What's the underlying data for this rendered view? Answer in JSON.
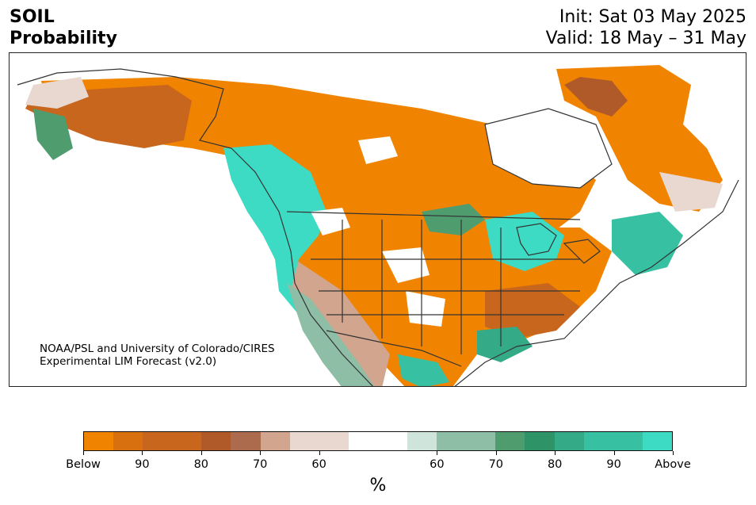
{
  "header": {
    "title_line1": "SOIL",
    "title_line2": "Probability",
    "init": "Init: Sat 03 May 2025",
    "valid": "Valid: 18 May – 31 May"
  },
  "map": {
    "region": "North America",
    "credit_line1": "NOAA/PSL and University of Colorado/CIRES",
    "credit_line2": "Experimental LIM Forecast (v2.0)"
  },
  "legend": {
    "units": "%",
    "colors": [
      "#f08400",
      "#d8700f",
      "#c9661e",
      "#c9661e",
      "#b05a2a",
      "#ad6b4d",
      "#d1a58e",
      "#e8d8d0",
      "#e8d8d0",
      "#ffffff",
      "#ffffff",
      "#cfe4da",
      "#8fbea6",
      "#8fbea6",
      "#4f9c6e",
      "#2e9468",
      "#34aa86",
      "#38c0a2",
      "#38c0a2",
      "#3ddbc3"
    ],
    "tick_labels": [
      "Below",
      "90",
      "80",
      "70",
      "60",
      "60",
      "70",
      "80",
      "90",
      "Above"
    ]
  }
}
